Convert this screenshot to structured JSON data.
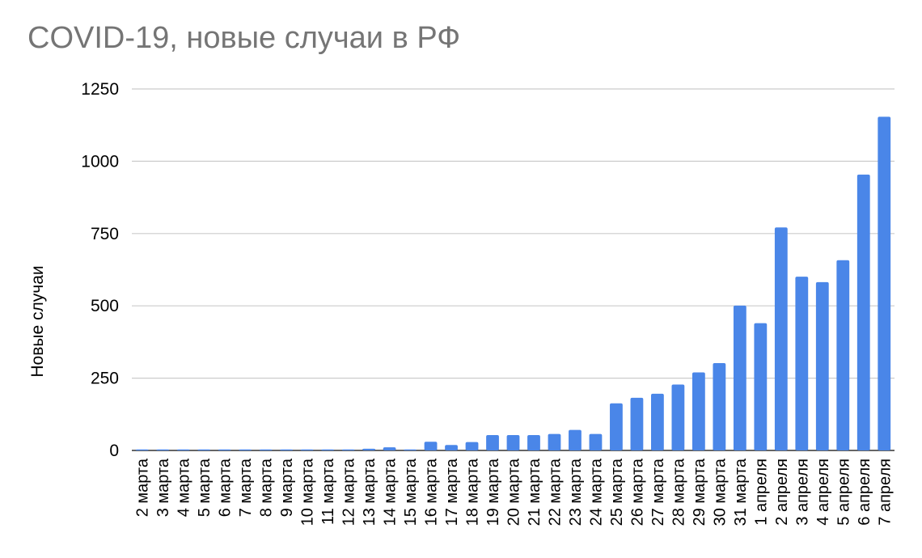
{
  "chart_data": {
    "type": "bar",
    "title": "COVID-19, новые случаи в РФ",
    "xlabel": "",
    "ylabel": "Новые случаи",
    "ylim": [
      0,
      1250
    ],
    "yticks": [
      0,
      250,
      500,
      750,
      1000,
      1250
    ],
    "grid": true,
    "legend": "none",
    "color": "#4a86e8",
    "categories": [
      "2 марта",
      "3 марта",
      "4 марта",
      "5 марта",
      "6 марта",
      "7 марта",
      "8 марта",
      "9 марта",
      "10 марта",
      "11 марта",
      "12 марта",
      "13 марта",
      "14 марта",
      "15 марта",
      "16 марта",
      "17 марта",
      "18 марта",
      "19 марта",
      "20 марта",
      "21 марта",
      "22 марта",
      "23 марта",
      "24 марта",
      "25 марта",
      "26 марта",
      "27 марта",
      "28 марта",
      "29 марта",
      "30 марта",
      "31 марта",
      "1 апреля",
      "2 апреля",
      "3 апреля",
      "4 апреля",
      "5 апреля",
      "6 апреля",
      "7 апреля"
    ],
    "values": [
      3,
      0,
      0,
      1,
      1,
      1,
      1,
      1,
      1,
      1,
      0,
      6,
      11,
      0,
      30,
      19,
      29,
      53,
      53,
      53,
      57,
      71,
      57,
      163,
      182,
      196,
      228,
      270,
      302,
      501,
      440,
      771,
      601,
      582,
      658,
      954,
      1154
    ]
  }
}
